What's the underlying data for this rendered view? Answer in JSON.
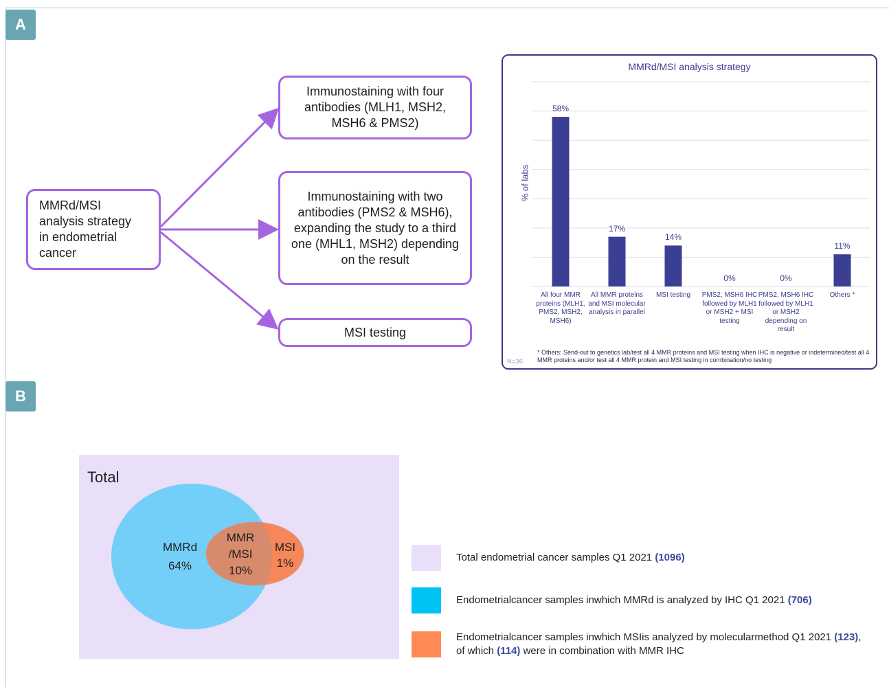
{
  "panel_a": {
    "label": "A",
    "root_box": "MMRd/MSI analysis strategy in endometrial cancer",
    "option_1": "Immunostaining with four antibodies (MLH1, MSH2, MSH6 & PMS2)",
    "option_2": "Immunostaining with two antibodies (PMS2 & MSH6), expanding the study to a third one (MHL1, MSH2) depending on the result",
    "option_3": "MSI testing",
    "colors": {
      "box_border": "#a565e0",
      "arrow": "#a565e0",
      "bar": "#3a3f94"
    }
  },
  "chart_data": {
    "type": "bar",
    "title": "MMRd/MSI analysis strategy",
    "ylabel": "% of labs",
    "ylim": [
      0,
      70
    ],
    "categories": [
      "All four MMR proteins (MLH1, PMS2, MSH2, MSH6)",
      "All MMR proteins and MSI molecular analysis in parallel",
      "MSI testing",
      "PMS2, MSH6 IHC followed by MLH1 or MSH2 + MSI testing",
      "PMS2, MSH6 IHC followed by MLH1 or MSH2 depending on result",
      "Others *"
    ],
    "values": [
      58,
      17,
      14,
      0,
      0,
      11
    ],
    "value_labels": [
      "58%",
      "17%",
      "14%",
      "0%",
      "0%",
      "11%"
    ],
    "grid": true,
    "n_label": "N=36",
    "footnote": "* Others: Send-out to genetics lab/test all 4 MMR proteins and MSI testing when IHC is negative or indetermined/test all 4 MMR proteins and/or test all 4 MMR protein and MSI testing in combination/no testing"
  },
  "panel_b": {
    "label": "B",
    "total_label": "Total",
    "mmrd_label": "MMRd",
    "mmrd_value": "64%",
    "overlap_label_1": "MMR",
    "overlap_label_2": "/MSI",
    "overlap_value": "10%",
    "msi_label": "MSI",
    "msi_value": "1%",
    "colors": {
      "total": "#eadff8",
      "mmrd": "#74cff8",
      "msi": "#f6875a",
      "overlap": "#d88a6c"
    },
    "legend": [
      {
        "text": "Total endometrial cancer samples Q1 2021 ",
        "count": "(1096)",
        "color": "#eadff8"
      },
      {
        "text": "Endometrialcancer  samples inwhich  MMRd is analyzed by IHC Q1 2021 ",
        "count": "(706)",
        "color": "#00c3f5"
      },
      {
        "text_a": "Endometrialcancer  samples inwhich  MSIis  analyzed by molecularmethod  Q1 2021 ",
        "count_a": "(123)",
        "text_b": ", of which ",
        "count_b": "(114)",
        "text_c": " were in combination with MMR IHC",
        "color": "#ff8a55"
      }
    ]
  }
}
